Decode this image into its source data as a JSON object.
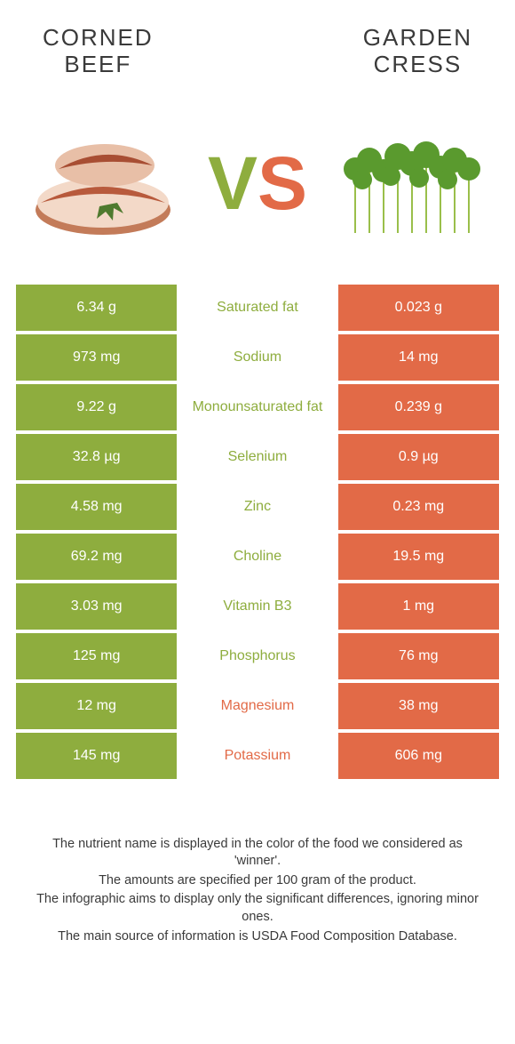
{
  "colors": {
    "left": "#8ead3e",
    "right": "#e26a47",
    "text": "#3a3a3a"
  },
  "header": {
    "left_line1": "CORNED",
    "left_line2": "BEEF",
    "right_line1": "GARDEN",
    "right_line2": "CRESS"
  },
  "vs": {
    "v": "V",
    "s": "S"
  },
  "rows": [
    {
      "left": "6.34 g",
      "mid": "Saturated fat",
      "right": "0.023 g",
      "winner": "left"
    },
    {
      "left": "973 mg",
      "mid": "Sodium",
      "right": "14 mg",
      "winner": "left"
    },
    {
      "left": "9.22 g",
      "mid": "Monounsaturated fat",
      "right": "0.239 g",
      "winner": "left"
    },
    {
      "left": "32.8 µg",
      "mid": "Selenium",
      "right": "0.9 µg",
      "winner": "left"
    },
    {
      "left": "4.58 mg",
      "mid": "Zinc",
      "right": "0.23 mg",
      "winner": "left"
    },
    {
      "left": "69.2 mg",
      "mid": "Choline",
      "right": "19.5 mg",
      "winner": "left"
    },
    {
      "left": "3.03 mg",
      "mid": "Vitamin B3",
      "right": "1 mg",
      "winner": "left"
    },
    {
      "left": "125 mg",
      "mid": "Phosphorus",
      "right": "76 mg",
      "winner": "left"
    },
    {
      "left": "12 mg",
      "mid": "Magnesium",
      "right": "38 mg",
      "winner": "right"
    },
    {
      "left": "145 mg",
      "mid": "Potassium",
      "right": "606 mg",
      "winner": "right"
    }
  ],
  "footer": {
    "l1": "The nutrient name is displayed in the color of the food we considered as 'winner'.",
    "l2": "The amounts are specified per 100 gram of the product.",
    "l3": "The infographic aims to display only the significant differences, ignoring minor ones.",
    "l4": "The main source of information is USDA Food Composition Database."
  }
}
